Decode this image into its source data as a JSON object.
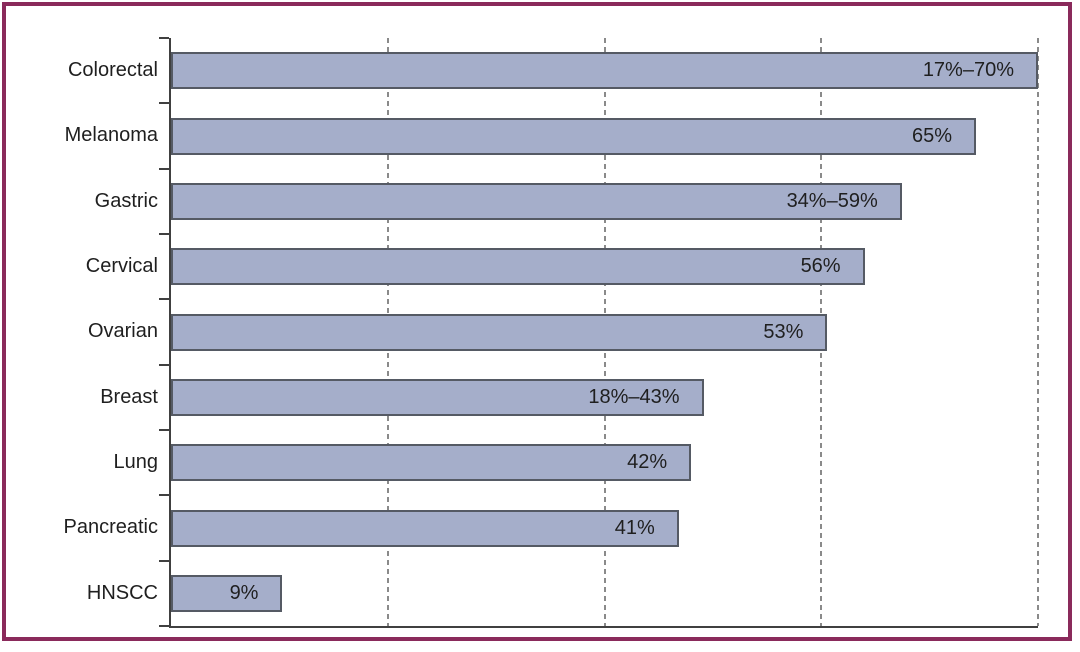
{
  "frame": {
    "border_color": "#8A2A5B"
  },
  "chart_data": {
    "type": "bar",
    "orientation": "horizontal",
    "title": "",
    "xlabel": "",
    "ylabel": "",
    "categories": [
      "Colorectal",
      "Melanoma",
      "Gastric",
      "Cervical",
      "Ovarian",
      "Breast",
      "Lung",
      "Pancreatic",
      "HNSCC"
    ],
    "values": [
      70,
      65,
      59,
      56,
      53,
      43,
      42,
      41,
      9
    ],
    "value_ranges": [
      [
        17,
        70
      ],
      [
        65,
        65
      ],
      [
        34,
        59
      ],
      [
        56,
        56
      ],
      [
        53,
        53
      ],
      [
        18,
        43
      ],
      [
        42,
        42
      ],
      [
        41,
        41
      ],
      [
        9,
        9
      ]
    ],
    "value_labels": [
      "17%–70%",
      "65%",
      "34%–59%",
      "56%",
      "53%",
      "18%–43%",
      "42%",
      "41%",
      "9%"
    ],
    "value_label_position": "inside-end",
    "xlim": [
      0,
      70
    ],
    "gridlines": {
      "style": "dashed-vertical",
      "values": [
        17.5,
        35,
        52.5,
        70
      ]
    },
    "legend": null
  },
  "colors": {
    "background": "#FFFFFF",
    "frame_border": "#8A2A5B",
    "bar_fill": "#A5AECA",
    "bar_border": "#555A64",
    "axis": "#404040",
    "gridline": "#8A8A8A",
    "text": "#1F1F1F"
  }
}
